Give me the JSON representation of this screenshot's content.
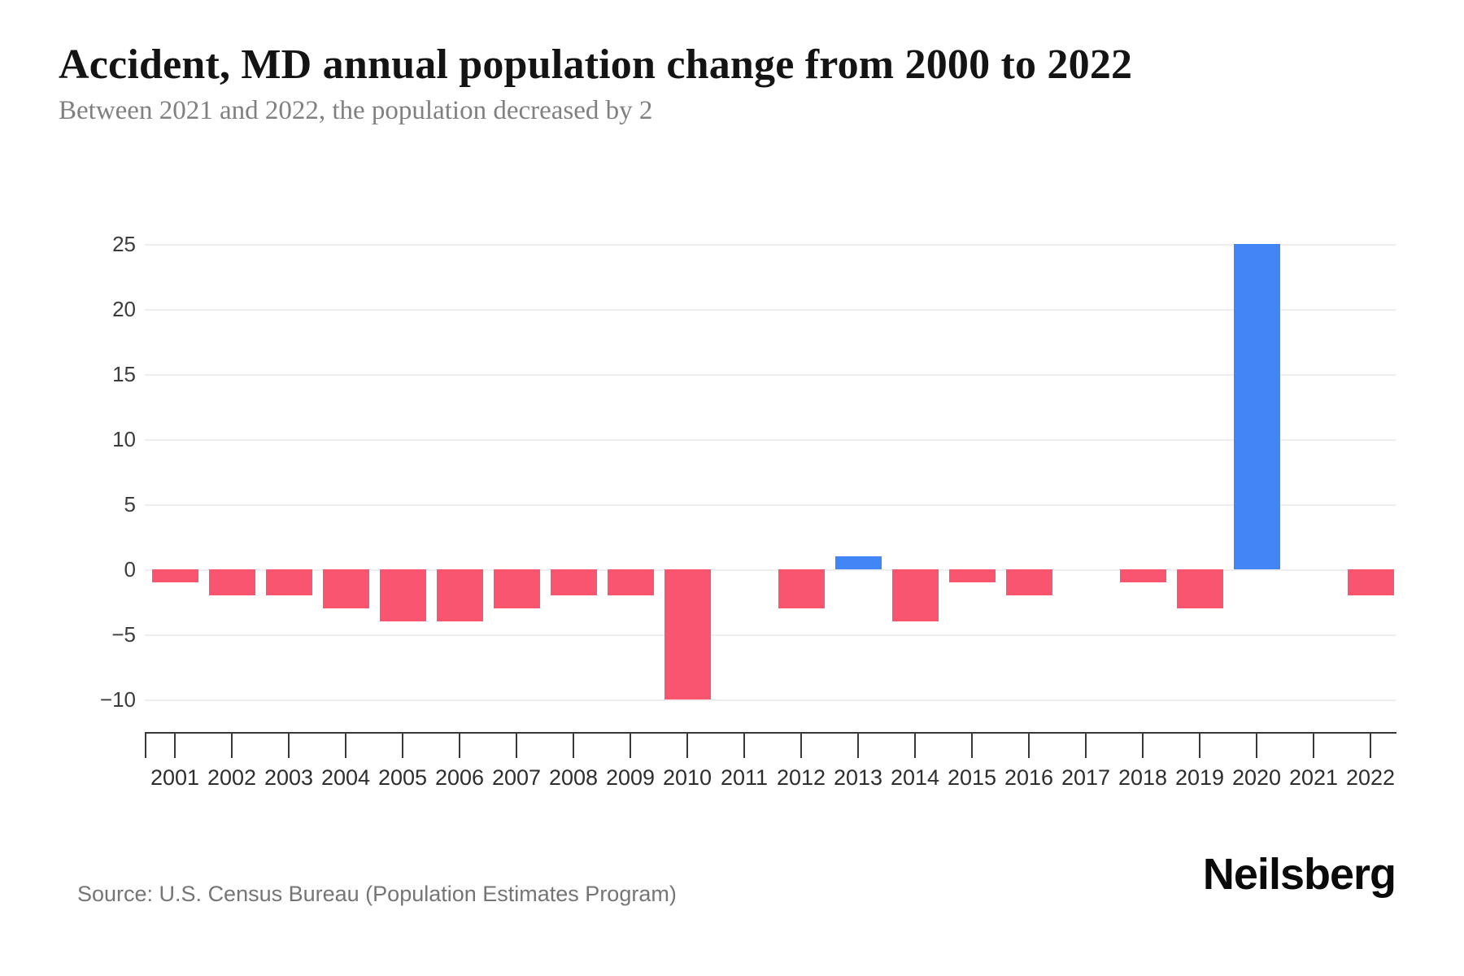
{
  "header": {
    "title": "Accident, MD annual population change from 2000 to 2022",
    "subtitle": "Between 2021 and 2022, the population decreased by 2"
  },
  "chart_data": {
    "type": "bar",
    "title": "Accident, MD annual population change from 2000 to 2022",
    "categories": [
      "2001",
      "2002",
      "2003",
      "2004",
      "2005",
      "2006",
      "2007",
      "2008",
      "2009",
      "2010",
      "2011",
      "2012",
      "2013",
      "2014",
      "2015",
      "2016",
      "2017",
      "2018",
      "2019",
      "2020",
      "2021",
      "2022"
    ],
    "values": [
      -1,
      -2,
      -2,
      -3,
      -4,
      -4,
      -3,
      -2,
      -2,
      -10,
      0,
      -3,
      1,
      -4,
      -1,
      -2,
      0,
      -1,
      -3,
      25,
      0,
      -2
    ],
    "xlabel": "",
    "ylabel": "",
    "ylim": [
      -10,
      25
    ],
    "yticks": [
      25,
      20,
      15,
      10,
      5,
      0,
      -5,
      -10
    ],
    "ytick_labels": [
      "25",
      "20",
      "15",
      "10",
      "5",
      "0",
      "−5",
      "−10"
    ],
    "grid": true,
    "legend_position": "none",
    "colors": {
      "positive_bar": "#4285F4",
      "negative_bar": "#F95570",
      "gridline": "#efefef",
      "axis": "#383838"
    }
  },
  "footer": {
    "source": "Source: U.S. Census Bureau (Population Estimates Program)",
    "brand": "Neilsberg"
  }
}
